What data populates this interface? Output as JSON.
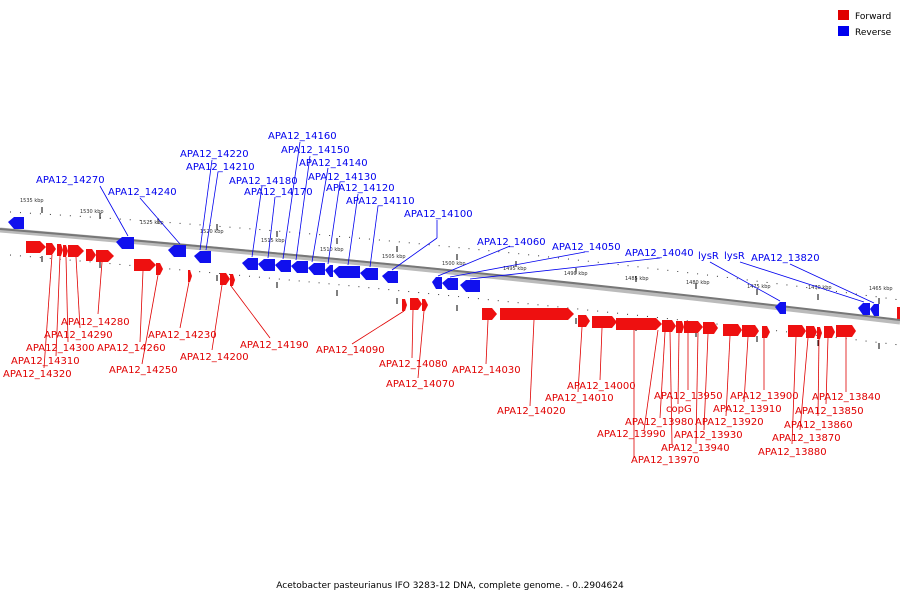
{
  "legend": {
    "forward_label": "Forward",
    "reverse_label": "Reverse",
    "forward_color": "#e00000",
    "reverse_color": "#0000ee"
  },
  "footer": "Acetobacter pasteurianus IFO 3283-12 DNA, complete genome. - 0..2904624",
  "ticks": [
    "1535 kbp",
    "1530 kbp",
    "1525 kbp",
    "1520 kbp",
    "1515 kbp",
    "1510 kbp",
    "1505 kbp",
    "1500 kbp",
    "1495 kbp",
    "1490 kbp",
    "1485 kbp",
    "1480 kbp",
    "1475 kbp",
    "1470 kbp",
    "1465 kbp"
  ],
  "reverse_labels": [
    "APA12_14270",
    "APA12_14240",
    "APA12_14220",
    "APA12_14210",
    "APA12_14180",
    "APA12_14170",
    "APA12_14160",
    "APA12_14150",
    "APA12_14140",
    "APA12_14130",
    "APA12_14120",
    "APA12_14110",
    "APA12_14100",
    "APA12_14060",
    "APA12_14050",
    "APA12_14040",
    "lysR",
    "lysR",
    "APA12_13820"
  ],
  "forward_labels": [
    "APA12_14280",
    "APA12_14290",
    "APA12_14300",
    "APA12_14310",
    "APA12_14320",
    "APA12_14260",
    "APA12_14250",
    "APA12_14230",
    "APA12_14200",
    "APA12_14190",
    "APA12_14090",
    "APA12_14080",
    "APA12_14070",
    "APA12_14030",
    "APA12_14020",
    "APA12_14010",
    "APA12_14000",
    "APA12_13950",
    "copG",
    "APA12_13980",
    "APA12_13990",
    "APA12_13970",
    "APA12_13940",
    "APA12_13930",
    "APA12_13920",
    "APA12_13910",
    "APA12_13900",
    "APA12_13880",
    "APA12_13870",
    "APA12_13860",
    "APA12_13850",
    "APA12_13840"
  ]
}
